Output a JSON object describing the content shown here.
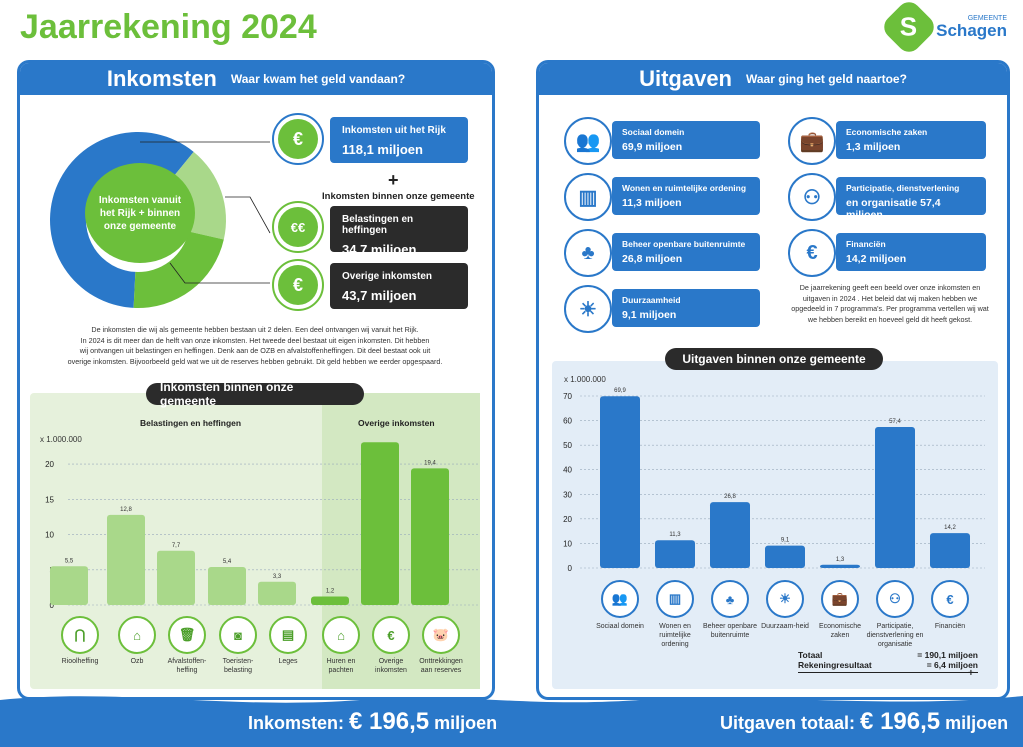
{
  "header": {
    "title": "Jaarrekening 2024",
    "logo_small": "GEMEENTE",
    "logo_big": "Schagen",
    "logo_letter": "S"
  },
  "left": {
    "title": "Inkomsten",
    "subtitle": "Waar kwam het geld vandaan?",
    "donut_label": "Inkomsten vanuit het Rijk + binnen onze gemeente",
    "donut_values": [
      118.1,
      34.7,
      43.7
    ],
    "donut_colors": [
      "#2a78c9",
      "#a9d88a",
      "#6cbf3b"
    ],
    "box_rijk": {
      "label": "Inkomsten uit het Rijk",
      "value": "118,1 miljoen"
    },
    "plus": "+",
    "binnen_label": "Inkomsten binnen onze gemeente",
    "box_belasting": {
      "label": "Belastingen en heffingen",
      "value": "34,7 miljoen"
    },
    "box_overig": {
      "label": "Overige inkomsten",
      "value": "43,7 miljoen"
    },
    "paragraph": [
      "De inkomsten die wij als gemeente hebben bestaan uit 2 delen. Een deel ontvangen wij vanuit het Rijk.",
      "In 2024 is dit meer dan de helft van onze inkomsten. Het tweede deel bestaat uit eigen inkomsten. Dit hebben",
      "wij ontvangen uit belastingen en heffingen. Denk aan de OZB en afvalstoffenheffingen. Dit deel bestaat ook uit",
      "overige inkomsten. Bijvoorbeeld geld wat we uit de reserves hebben gebruikt. Dit geld hebben we eerder opgespaard."
    ],
    "chart_pill": "Inkomsten binnen onze gemeente",
    "group1_title": "Belastingen en heffingen",
    "group2_title": "Overige inkomsten",
    "unit": "x 1.000.000",
    "icons": [
      "riool-icon",
      "house-icon",
      "trash-bin-icon",
      "camera-icon",
      "passport-icon",
      "building-icon",
      "coins-icon",
      "piggy-bank-icon"
    ],
    "icon_glyphs": [
      "⋂",
      "⌂",
      "🗑",
      "◙",
      "▤",
      "⌂",
      "€",
      "🐷"
    ],
    "footer": {
      "label": "Inkomsten:",
      "value": "€ 196,5",
      "unit": "miljoen"
    }
  },
  "right": {
    "title": "Uitgaven",
    "subtitle": "Waar ging het geld naartoe?",
    "items": [
      {
        "label": "Sociaal domein",
        "value": "69,9 miljoen",
        "icon": "people-icon",
        "glyph": "👥"
      },
      {
        "label": "Economische zaken",
        "value": "1,3 miljoen",
        "icon": "briefcase-icon",
        "glyph": "💼"
      },
      {
        "label": "Wonen en ruimtelijke ordening",
        "value": "11,3 miljoen",
        "icon": "buildings-icon",
        "glyph": "▥"
      },
      {
        "label": "Participatie, dienstverlening",
        "value": "en organisatie 57,4 miljoen",
        "icon": "network-icon",
        "glyph": "⚇"
      },
      {
        "label": "Beheer openbare buitenruimte",
        "value": "26,8 miljoen",
        "icon": "tree-icon",
        "glyph": "♣"
      },
      {
        "label": "Financiën",
        "value": "14,2 miljoen",
        "icon": "coins-icon",
        "glyph": "€"
      },
      {
        "label": "Duurzaamheid",
        "value": "9,1 miljoen",
        "icon": "solar-panel-icon",
        "glyph": "☀"
      }
    ],
    "paragraph": [
      "De jaarrekening geeft een beeld over onze inkomsten en",
      "uitgaven in 2024 . Het beleid dat wij maken hebben we",
      "opgedeeld in 7 programma's. Per programma vertellen wij wat",
      "we hebben bereikt en hoeveel geld dit heeft gekost."
    ],
    "chart_pill": "Uitgaven binnen onze gemeente",
    "unit": "x 1.000.000",
    "bar_glyphs": [
      "👥",
      "▥",
      "♣",
      "☀",
      "💼",
      "⚇",
      "€"
    ],
    "bar_icons": [
      "people-icon",
      "buildings-icon",
      "tree-icon",
      "solar-panel-icon",
      "briefcase-icon",
      "network-icon",
      "coins-icon"
    ],
    "totaal_label": "Totaal",
    "totaal_value": "= 190,1 miljoen",
    "resultaat_label": "Rekeningresultaat",
    "resultaat_value": "= 6,4 miljoen",
    "plus": "+",
    "footer": {
      "label": "Uitgaven totaal:",
      "value": "€ 196,5",
      "unit": "miljoen"
    }
  },
  "chart_data": [
    {
      "type": "pie",
      "categories": [
        "Inkomsten uit het Rijk",
        "Belastingen en heffingen",
        "Overige inkomsten"
      ],
      "values": [
        118.1,
        34.7,
        43.7
      ]
    },
    {
      "type": "bar",
      "title": "Inkomsten binnen onze gemeente",
      "ylabel": "x 1.000.000",
      "ylim": [
        0,
        22
      ],
      "yticks": [
        0,
        5,
        10,
        15,
        20
      ],
      "categories": [
        "Rioolheffing",
        "Ozb",
        "Afvalstoffen-heffing",
        "Toeristen-belasting",
        "Leges",
        "Huren en pachten",
        "Overige inkomsten",
        "Onttrekkingen aan reserves"
      ],
      "values": [
        5.5,
        12.8,
        7.7,
        5.4,
        3.3,
        1.2,
        23.1,
        19.4
      ],
      "value_labels": [
        "5,5",
        "12,8",
        "7,7",
        "5,4",
        "3,3",
        "1,2",
        "23,1",
        "19,4"
      ],
      "groups": [
        {
          "name": "Belastingen en heffingen",
          "size": 5
        },
        {
          "name": "Overige inkomsten",
          "size": 3
        }
      ]
    },
    {
      "type": "bar",
      "title": "Uitgaven binnen onze gemeente",
      "ylabel": "x 1.000.000",
      "ylim": [
        0,
        70
      ],
      "yticks": [
        0,
        10,
        20,
        30,
        40,
        50,
        60,
        70
      ],
      "categories": [
        "Sociaal domein",
        "Wonen en ruimtelijke ordening",
        "Beheer openbare buitenruimte",
        "Duurzaam-heid",
        "Economische zaken",
        "Participatie, dienstverlening en organisatie",
        "Financiën"
      ],
      "values": [
        69.9,
        11.3,
        26.8,
        9.1,
        1.3,
        57.4,
        14.2
      ],
      "value_labels": [
        "69,9",
        "11,3",
        "26,8",
        "9,1",
        "1,3",
        "57,4",
        "14,2"
      ]
    }
  ]
}
